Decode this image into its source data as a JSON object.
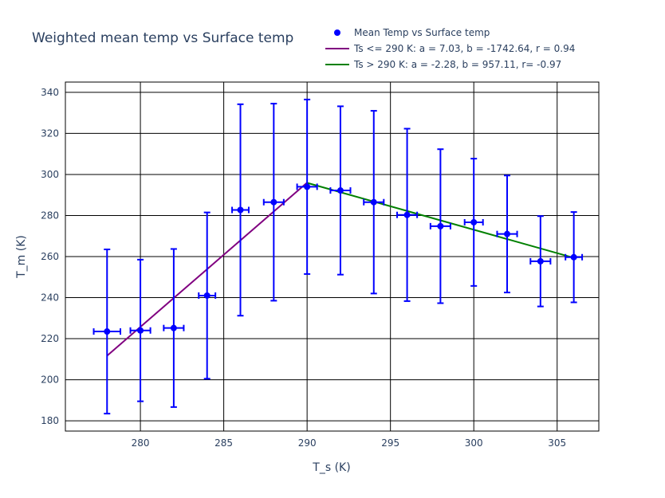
{
  "chart_data": {
    "type": "scatter",
    "title": "Weighted mean temp vs Surface temp",
    "xlabel": "T_s (K)",
    "ylabel": "T_m (K)",
    "xlim": [
      275.5,
      307.5
    ],
    "ylim": [
      175,
      345
    ],
    "xticks": [
      280,
      285,
      290,
      295,
      300,
      305
    ],
    "yticks": [
      180,
      200,
      220,
      240,
      260,
      280,
      300,
      320,
      340
    ],
    "grid": true,
    "legend_position": "top-right",
    "series": [
      {
        "name": "Mean Temp vs Surface temp",
        "kind": "markers",
        "color": "#0000ff",
        "points": [
          {
            "x": 278,
            "y": 223.5,
            "y_err": 40,
            "x_err": 0.8
          },
          {
            "x": 280,
            "y": 224,
            "y_err": 34.5,
            "x_err": 0.6
          },
          {
            "x": 282,
            "y": 225.2,
            "y_err": 38.5,
            "x_err": 0.6
          },
          {
            "x": 284,
            "y": 241,
            "y_err": 40.5,
            "x_err": 0.5
          },
          {
            "x": 286,
            "y": 282.7,
            "y_err": 51.5,
            "x_err": 0.5
          },
          {
            "x": 288,
            "y": 286.5,
            "y_err": 48,
            "x_err": 0.6
          },
          {
            "x": 290,
            "y": 294,
            "y_err": 42.5,
            "x_err": 0.6
          },
          {
            "x": 292,
            "y": 292.2,
            "y_err": 41,
            "x_err": 0.6
          },
          {
            "x": 294,
            "y": 286.5,
            "y_err": 44.5,
            "x_err": 0.6
          },
          {
            "x": 296,
            "y": 280.3,
            "y_err": 42,
            "x_err": 0.6
          },
          {
            "x": 298,
            "y": 274.8,
            "y_err": 37.5,
            "x_err": 0.6
          },
          {
            "x": 300,
            "y": 276.7,
            "y_err": 31,
            "x_err": 0.55
          },
          {
            "x": 302,
            "y": 271,
            "y_err": 28.5,
            "x_err": 0.6
          },
          {
            "x": 304,
            "y": 257.7,
            "y_err": 22,
            "x_err": 0.6
          },
          {
            "x": 306,
            "y": 259.7,
            "y_err": 22,
            "x_err": 0.5
          }
        ]
      },
      {
        "name": "Ts <= 290 K: a = 7.03, b = -1742.64, r = 0.94",
        "kind": "line",
        "color": "#800080",
        "x": [
          278,
          290
        ],
        "y": [
          211.7,
          296.0
        ]
      },
      {
        "name": "Ts > 290 K: a = -2.28, b = 957.11, r= -0.97",
        "kind": "line",
        "color": "#008000",
        "x": [
          290,
          306
        ],
        "y": [
          295.9,
          259.4
        ]
      }
    ]
  }
}
